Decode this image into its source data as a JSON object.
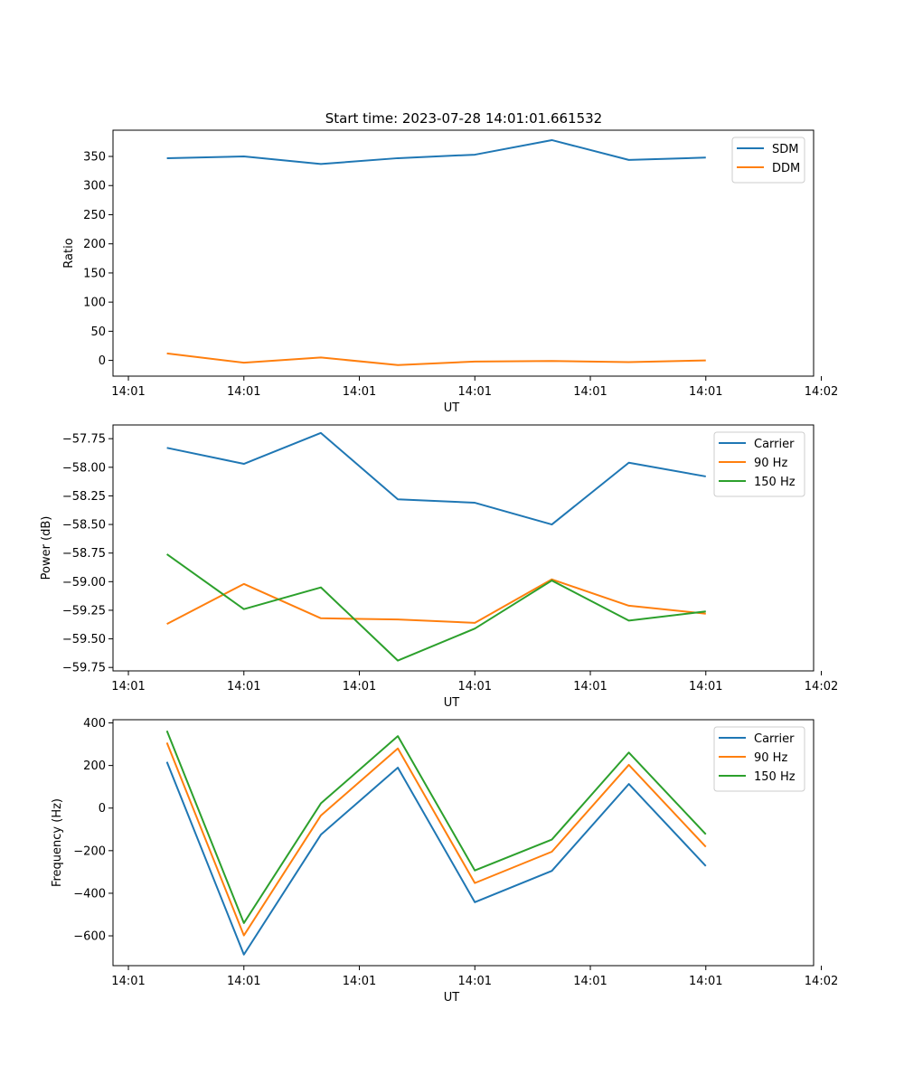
{
  "figure": {
    "title": "Start time: 2023-07-28 14:01:01.661532"
  },
  "chart_data": [
    {
      "type": "line",
      "title": "Start time: 2023-07-28 14:01:01.661532",
      "xlabel": "UT",
      "ylabel": "Ratio",
      "x": [
        1,
        2,
        3,
        4,
        5,
        6,
        7,
        8
      ],
      "xlim": [
        0.3,
        9.4
      ],
      "xticks": [
        0.5,
        2.0,
        3.5,
        5.0,
        6.5,
        8.0,
        9.5
      ],
      "xtick_labels": [
        "14:01",
        "14:01",
        "14:01",
        "14:01",
        "14:01",
        "14:01",
        "14:02"
      ],
      "ylim": [
        -27,
        395
      ],
      "yticks": [
        0,
        50,
        100,
        150,
        200,
        250,
        300,
        350
      ],
      "ytick_labels": [
        "0",
        "50",
        "100",
        "150",
        "200",
        "250",
        "300",
        "350"
      ],
      "legend": "top-right",
      "series": [
        {
          "name": "SDM",
          "color": "#1f77b4",
          "values": [
            347,
            350,
            337,
            347,
            353,
            378,
            344,
            348
          ]
        },
        {
          "name": "DDM",
          "color": "#ff7f0e",
          "values": [
            12,
            -4,
            5,
            -8,
            -2,
            -1,
            -3,
            0
          ]
        }
      ]
    },
    {
      "type": "line",
      "title": "",
      "xlabel": "UT",
      "ylabel": "Power (dB)",
      "x": [
        1,
        2,
        3,
        4,
        5,
        6,
        7,
        8
      ],
      "xlim": [
        0.3,
        9.4
      ],
      "xticks": [
        0.5,
        2.0,
        3.5,
        5.0,
        6.5,
        8.0,
        9.5
      ],
      "xtick_labels": [
        "14:01",
        "14:01",
        "14:01",
        "14:01",
        "14:01",
        "14:01",
        "14:02"
      ],
      "ylim": [
        -59.78,
        -57.63
      ],
      "yticks": [
        -57.75,
        -58.0,
        -58.25,
        -58.5,
        -58.75,
        -59.0,
        -59.25,
        -59.5,
        -59.75
      ],
      "ytick_labels": [
        "−57.75",
        "−58.00",
        "−58.25",
        "−58.50",
        "−58.75",
        "−59.00",
        "−59.25",
        "−59.50",
        "−59.75"
      ],
      "legend": "top-right",
      "series": [
        {
          "name": "Carrier",
          "color": "#1f77b4",
          "values": [
            -57.83,
            -57.97,
            -57.7,
            -58.28,
            -58.31,
            -58.5,
            -57.96,
            -58.08
          ]
        },
        {
          "name": "90 Hz",
          "color": "#ff7f0e",
          "values": [
            -59.37,
            -59.02,
            -59.32,
            -59.33,
            -59.36,
            -58.98,
            -59.21,
            -59.28
          ]
        },
        {
          "name": "150 Hz",
          "color": "#2ca02c",
          "values": [
            -58.76,
            -59.24,
            -59.05,
            -59.69,
            -59.41,
            -58.99,
            -59.34,
            -59.26
          ]
        }
      ]
    },
    {
      "type": "line",
      "title": "",
      "xlabel": "UT",
      "ylabel": "Frequency (Hz)",
      "x": [
        1,
        2,
        3,
        4,
        5,
        6,
        7,
        8
      ],
      "xlim": [
        0.3,
        9.4
      ],
      "xticks": [
        0.5,
        2.0,
        3.5,
        5.0,
        6.5,
        8.0,
        9.5
      ],
      "xtick_labels": [
        "14:01",
        "14:01",
        "14:01",
        "14:01",
        "14:01",
        "14:01",
        "14:02"
      ],
      "ylim": [
        -740,
        415
      ],
      "yticks": [
        400,
        200,
        0,
        -200,
        -400,
        -600
      ],
      "ytick_labels": [
        "400",
        "200",
        "0",
        "−200",
        "−400",
        "−600"
      ],
      "legend": "top-right",
      "series": [
        {
          "name": "Carrier",
          "color": "#1f77b4",
          "values": [
            217,
            -688,
            -125,
            190,
            -442,
            -295,
            113,
            -272
          ]
        },
        {
          "name": "90 Hz",
          "color": "#ff7f0e",
          "values": [
            307,
            -598,
            -35,
            280,
            -352,
            -205,
            203,
            -182
          ]
        },
        {
          "name": "150 Hz",
          "color": "#2ca02c",
          "values": [
            363,
            -540,
            22,
            338,
            -293,
            -148,
            261,
            -123
          ]
        }
      ]
    }
  ]
}
